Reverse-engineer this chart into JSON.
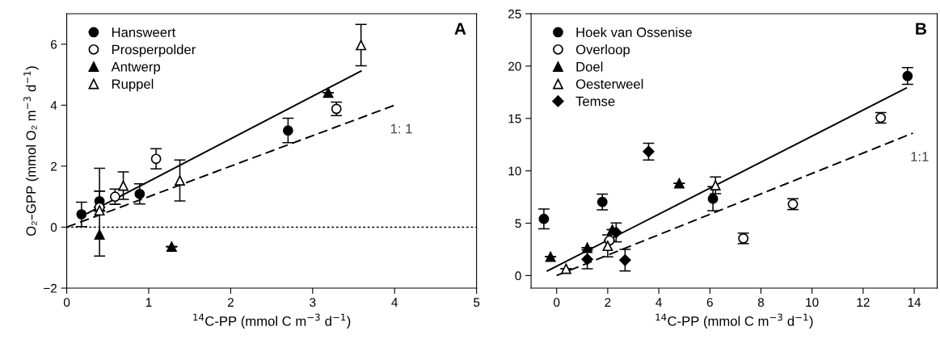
{
  "chart_data": [
    {
      "type": "scatter",
      "ylabel": "O₂–GPP (mmol O₂ m$^{−3}$ d$^{−1}$)",
      "xlabel": "$^{14}$C-PP (mmol C m$^{−3}$ d$^{−1}$)",
      "xlim": [
        0,
        5
      ],
      "xticks": [
        0,
        1,
        2,
        3,
        4,
        5
      ],
      "ylim": [
        -2,
        7
      ],
      "yticks": [
        -2,
        0,
        2,
        4,
        6
      ],
      "grid": false,
      "legend": "top left",
      "annotations": [
        "A",
        "1: 1"
      ],
      "ref_lines": [
        {
          "axis": "y",
          "value": 0,
          "line_style": "dotted",
          "color": "#000000"
        }
      ],
      "series": [
        {
          "name": "Hansweert",
          "color": "#000000",
          "marker": "circle",
          "x": [
            0.18,
            0.4,
            0.89,
            2.7
          ],
          "values": [
            0.42,
            0.85,
            1.09,
            3.17
          ],
          "errors": [
            0.4,
            0.33,
            0.33,
            0.4
          ]
        },
        {
          "name": "Prosperpolder",
          "color": "#000000",
          "marker": "circle",
          "x": [
            0.4,
            0.59,
            1.09,
            3.29
          ],
          "values": [
            0.65,
            1.0,
            2.24,
            3.88
          ],
          "errors": [
            null,
            0.25,
            0.33,
            0.22
          ]
        },
        {
          "name": "Antwerp",
          "color": "#000000",
          "marker": "triangle",
          "x": [
            0.4,
            1.28,
            3.19
          ],
          "values": [
            -0.24,
            -0.64,
            4.41
          ],
          "errors": [
            [
              -0.95,
              1.93
            ],
            null,
            null
          ]
        },
        {
          "name": "Ruppel",
          "color": "#000000",
          "marker": "triangle",
          "x": [
            0.4,
            0.69,
            1.38,
            3.59
          ],
          "values": [
            0.55,
            1.36,
            1.53,
            5.97
          ],
          "errors": [
            null,
            0.45,
            0.67,
            0.68
          ]
        },
        {
          "type": "line",
          "color": "#000000",
          "line_style": "solid",
          "x": [
            0.25,
            3.59
          ],
          "values": [
            0.45,
            5.12
          ]
        },
        {
          "type": "line",
          "color": "#000000",
          "line_style": "dashed",
          "x": [
            0,
            4
          ],
          "values": [
            0,
            4
          ]
        }
      ]
    },
    {
      "type": "scatter",
      "xlabel": "$^{14}$C-PP (mmol C m$^{−3}$ d$^{−1}$)",
      "xlim": [
        -1,
        14.9
      ],
      "xticks": [
        0,
        2,
        4,
        6,
        8,
        10,
        12,
        14
      ],
      "ylim": [
        -1.2,
        25
      ],
      "yticks": [
        0,
        5,
        10,
        15,
        20,
        25
      ],
      "grid": false,
      "legend": "top left",
      "annotations": [
        "B",
        "1:1"
      ],
      "series": [
        {
          "name": "Hoek van Ossenise",
          "color": "#000000",
          "marker": "circle",
          "x": [
            -0.5,
            1.79,
            6.12,
            13.74
          ],
          "values": [
            5.41,
            7.03,
            7.34,
            19.05
          ],
          "errors": [
            0.95,
            0.75,
            1.15,
            0.8
          ]
        },
        {
          "name": "Overloop",
          "color": "#000000",
          "marker": "circle",
          "x": [
            2.07,
            7.31,
            9.25,
            12.69
          ],
          "values": [
            3.35,
            3.55,
            6.82,
            15.06
          ],
          "errors": [
            null,
            0.5,
            0.52,
            0.5
          ]
        },
        {
          "name": "Doel",
          "color": "#000000",
          "marker": "triangle",
          "x": [
            -0.24,
            1.2,
            2.18,
            4.8
          ],
          "values": [
            1.8,
            2.65,
            4.38,
            8.8
          ],
          "errors": [
            null,
            null,
            null,
            null
          ]
        },
        {
          "name": "Oesterweel",
          "color": "#000000",
          "marker": "triangle",
          "x": [
            0.37,
            2.0,
            6.22
          ],
          "values": [
            0.65,
            2.83,
            8.62
          ],
          "errors": [
            null,
            1.05,
            0.8
          ]
        },
        {
          "name": "Temse",
          "color": "#000000",
          "marker": "diamond",
          "x": [
            1.2,
            2.33,
            2.68,
            3.6
          ],
          "values": [
            1.55,
            4.12,
            1.47,
            11.84
          ],
          "errors": [
            0.9,
            0.9,
            1.03,
            0.8
          ]
        },
        {
          "type": "line",
          "color": "#000000",
          "line_style": "solid",
          "x": [
            -0.36,
            13.69
          ],
          "values": [
            0.44,
            17.9
          ]
        },
        {
          "type": "line",
          "color": "#000000",
          "line_style": "dashed",
          "x": [
            0,
            13.95
          ],
          "values": [
            0,
            13.6
          ]
        }
      ]
    }
  ]
}
